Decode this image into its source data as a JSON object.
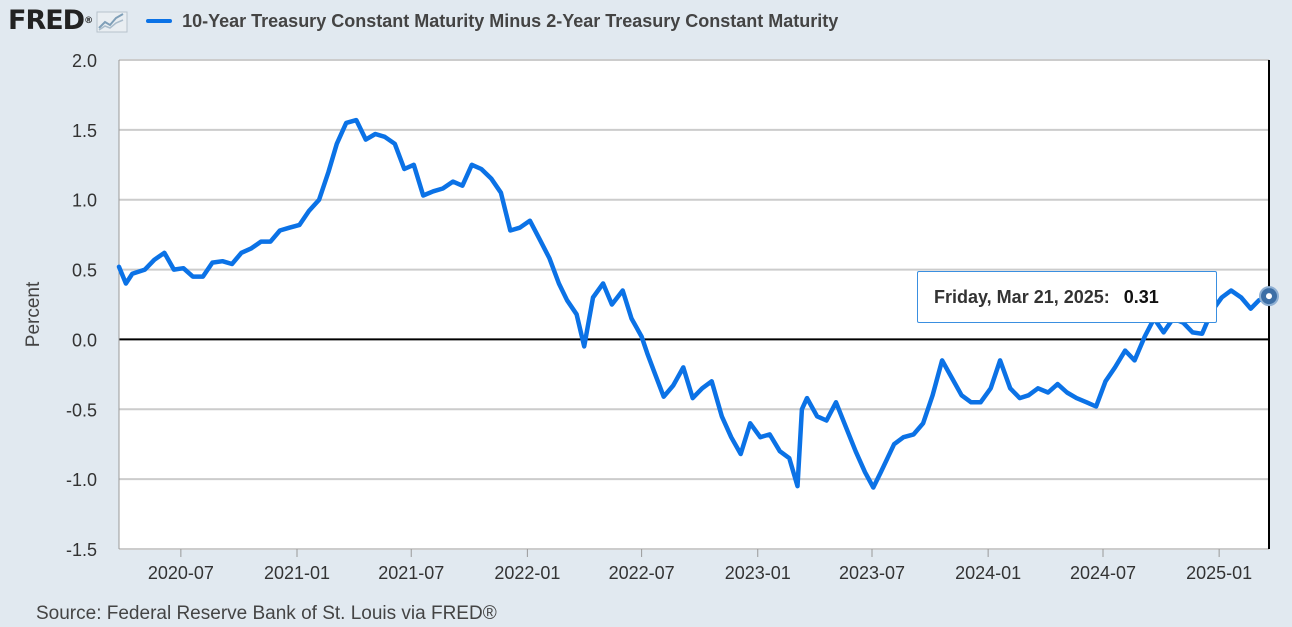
{
  "header": {
    "logo_text": "FRED",
    "logo_mark": "®",
    "logo_icon": "line-chart-icon",
    "series_title": "10-Year Treasury Constant Maturity Minus 2-Year Treasury Constant Maturity"
  },
  "tooltip": {
    "date": "Friday, Mar 21, 2025:",
    "value": "0.31"
  },
  "source": "Source: Federal Reserve Bank of St. Louis via FRED®",
  "colors": {
    "series": "#0b72e6",
    "background": "#e1e9f0",
    "plot": "#ffffff",
    "zero_line": "#000000",
    "grid": "#cccccc"
  },
  "chart_data": {
    "type": "line",
    "ylabel": "Percent",
    "ylim": [
      -1.5,
      2.0
    ],
    "yticks": [
      "2.0",
      "1.5",
      "1.0",
      "0.5",
      "0.0",
      "-0.5",
      "-1.0",
      "-1.5"
    ],
    "xticks": [
      "2020-07",
      "2021-01",
      "2021-07",
      "2022-01",
      "2022-07",
      "2023-01",
      "2023-07",
      "2024-01",
      "2024-07",
      "2025-01"
    ],
    "xlim": [
      "2020-03-25",
      "2025-03-21"
    ],
    "grid": true,
    "legend_position": "top",
    "series": [
      {
        "name": "10-Year Treasury Constant Maturity Minus 2-Year Treasury Constant Maturity",
        "points": [
          [
            "2020-03-25",
            0.52
          ],
          [
            "2020-04-05",
            0.4
          ],
          [
            "2020-04-15",
            0.47
          ],
          [
            "2020-05-05",
            0.5
          ],
          [
            "2020-05-20",
            0.57
          ],
          [
            "2020-06-05",
            0.62
          ],
          [
            "2020-06-20",
            0.5
          ],
          [
            "2020-07-05",
            0.51
          ],
          [
            "2020-07-20",
            0.45
          ],
          [
            "2020-08-05",
            0.45
          ],
          [
            "2020-08-20",
            0.55
          ],
          [
            "2020-09-05",
            0.56
          ],
          [
            "2020-09-20",
            0.54
          ],
          [
            "2020-10-05",
            0.62
          ],
          [
            "2020-10-20",
            0.65
          ],
          [
            "2020-11-05",
            0.7
          ],
          [
            "2020-11-20",
            0.7
          ],
          [
            "2020-12-05",
            0.78
          ],
          [
            "2020-12-20",
            0.8
          ],
          [
            "2021-01-05",
            0.82
          ],
          [
            "2021-01-20",
            0.92
          ],
          [
            "2021-02-05",
            1.0
          ],
          [
            "2021-02-20",
            1.2
          ],
          [
            "2021-03-05",
            1.4
          ],
          [
            "2021-03-20",
            1.55
          ],
          [
            "2021-04-05",
            1.57
          ],
          [
            "2021-04-20",
            1.43
          ],
          [
            "2021-05-05",
            1.47
          ],
          [
            "2021-05-20",
            1.45
          ],
          [
            "2021-06-05",
            1.4
          ],
          [
            "2021-06-20",
            1.22
          ],
          [
            "2021-07-05",
            1.25
          ],
          [
            "2021-07-20",
            1.03
          ],
          [
            "2021-08-05",
            1.06
          ],
          [
            "2021-08-20",
            1.08
          ],
          [
            "2021-09-05",
            1.13
          ],
          [
            "2021-09-20",
            1.1
          ],
          [
            "2021-10-05",
            1.25
          ],
          [
            "2021-10-20",
            1.22
          ],
          [
            "2021-11-05",
            1.15
          ],
          [
            "2021-11-20",
            1.05
          ],
          [
            "2021-12-05",
            0.78
          ],
          [
            "2021-12-20",
            0.8
          ],
          [
            "2022-01-05",
            0.85
          ],
          [
            "2022-01-20",
            0.72
          ],
          [
            "2022-02-05",
            0.58
          ],
          [
            "2022-02-20",
            0.4
          ],
          [
            "2022-03-05",
            0.28
          ],
          [
            "2022-03-20",
            0.18
          ],
          [
            "2022-04-01",
            -0.05
          ],
          [
            "2022-04-15",
            0.3
          ],
          [
            "2022-05-01",
            0.4
          ],
          [
            "2022-05-15",
            0.25
          ],
          [
            "2022-06-01",
            0.35
          ],
          [
            "2022-06-15",
            0.15
          ],
          [
            "2022-07-01",
            0.02
          ],
          [
            "2022-07-10",
            -0.1
          ],
          [
            "2022-07-20",
            -0.22
          ],
          [
            "2022-08-05",
            -0.41
          ],
          [
            "2022-08-20",
            -0.33
          ],
          [
            "2022-09-05",
            -0.2
          ],
          [
            "2022-09-20",
            -0.42
          ],
          [
            "2022-10-05",
            -0.35
          ],
          [
            "2022-10-20",
            -0.3
          ],
          [
            "2022-11-05",
            -0.55
          ],
          [
            "2022-11-20",
            -0.7
          ],
          [
            "2022-12-05",
            -0.82
          ],
          [
            "2022-12-20",
            -0.6
          ],
          [
            "2023-01-05",
            -0.7
          ],
          [
            "2023-01-20",
            -0.68
          ],
          [
            "2023-02-05",
            -0.8
          ],
          [
            "2023-02-20",
            -0.85
          ],
          [
            "2023-03-05",
            -1.05
          ],
          [
            "2023-03-12",
            -0.5
          ],
          [
            "2023-03-20",
            -0.42
          ],
          [
            "2023-04-05",
            -0.55
          ],
          [
            "2023-04-20",
            -0.58
          ],
          [
            "2023-05-05",
            -0.45
          ],
          [
            "2023-05-20",
            -0.62
          ],
          [
            "2023-06-05",
            -0.8
          ],
          [
            "2023-06-20",
            -0.95
          ],
          [
            "2023-07-03",
            -1.06
          ],
          [
            "2023-07-15",
            -0.95
          ],
          [
            "2023-08-05",
            -0.75
          ],
          [
            "2023-08-20",
            -0.7
          ],
          [
            "2023-09-05",
            -0.68
          ],
          [
            "2023-09-20",
            -0.6
          ],
          [
            "2023-10-05",
            -0.4
          ],
          [
            "2023-10-20",
            -0.15
          ],
          [
            "2023-11-05",
            -0.28
          ],
          [
            "2023-11-20",
            -0.4
          ],
          [
            "2023-12-05",
            -0.45
          ],
          [
            "2023-12-20",
            -0.45
          ],
          [
            "2024-01-05",
            -0.35
          ],
          [
            "2024-01-20",
            -0.15
          ],
          [
            "2024-02-05",
            -0.35
          ],
          [
            "2024-02-20",
            -0.42
          ],
          [
            "2024-03-05",
            -0.4
          ],
          [
            "2024-03-20",
            -0.35
          ],
          [
            "2024-04-05",
            -0.38
          ],
          [
            "2024-04-20",
            -0.32
          ],
          [
            "2024-05-05",
            -0.38
          ],
          [
            "2024-05-20",
            -0.42
          ],
          [
            "2024-06-05",
            -0.45
          ],
          [
            "2024-06-20",
            -0.48
          ],
          [
            "2024-07-05",
            -0.3
          ],
          [
            "2024-07-20",
            -0.2
          ],
          [
            "2024-08-05",
            -0.08
          ],
          [
            "2024-08-20",
            -0.15
          ],
          [
            "2024-09-05",
            0.02
          ],
          [
            "2024-09-20",
            0.15
          ],
          [
            "2024-10-05",
            0.05
          ],
          [
            "2024-10-20",
            0.15
          ],
          [
            "2024-11-05",
            0.12
          ],
          [
            "2024-11-20",
            0.05
          ],
          [
            "2024-12-05",
            0.04
          ],
          [
            "2024-12-20",
            0.2
          ],
          [
            "2025-01-05",
            0.3
          ],
          [
            "2025-01-20",
            0.35
          ],
          [
            "2025-02-05",
            0.3
          ],
          [
            "2025-02-20",
            0.22
          ],
          [
            "2025-03-05",
            0.28
          ],
          [
            "2025-03-21",
            0.31
          ]
        ]
      }
    ]
  }
}
